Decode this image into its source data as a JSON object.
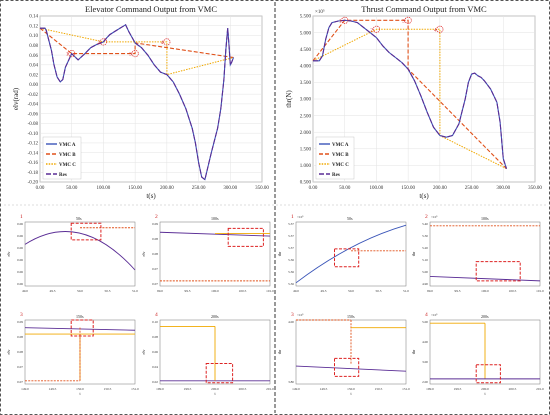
{
  "chart_data": [
    {
      "type": "line",
      "title": "Elevator Command Output from VMC",
      "xlabel": "t(s)",
      "ylabel": "elv(rad)",
      "xlim": [
        0,
        350
      ],
      "ylim": [
        -0.2,
        0.14
      ],
      "xticks": [
        "0.00",
        "50.00",
        "100.00",
        "150.00",
        "200.00",
        "250.00",
        "300.00",
        "350.00"
      ],
      "yticks": [
        "0.14",
        "0.12",
        "0.10",
        "0.08",
        "0.06",
        "0.04",
        "0.02",
        "0.00",
        "-0.02",
        "-0.04",
        "-0.06",
        "-0.08",
        "-0.10",
        "-0.12",
        "-0.14",
        "-0.16",
        "-0.18",
        "-0.20"
      ],
      "legend": [
        "VMC A",
        "VMC B",
        "VMC C",
        "Res"
      ],
      "legend_position": "bottom-left",
      "grid": true,
      "colors": {
        "VMC A": "#3a55b8",
        "VMC B": "#e0511a",
        "VMC C": "#f0a800",
        "Res": "#5a2d95"
      },
      "series": [
        {
          "name": "VMC A",
          "x": [
            0,
            8,
            10,
            18,
            22,
            27,
            32,
            36,
            40,
            50,
            60,
            70,
            80,
            90,
            100,
            105,
            110,
            120,
            130,
            135,
            140,
            150,
            160,
            170,
            180,
            190,
            200,
            210,
            220,
            230,
            240,
            245,
            250,
            255,
            260,
            270,
            280,
            285,
            290,
            293,
            296,
            298,
            300,
            302,
            305
          ],
          "y": [
            0.115,
            0.115,
            0.11,
            0.07,
            0.04,
            0.015,
            0.005,
            0.01,
            0.035,
            0.063,
            0.05,
            0.062,
            0.075,
            0.082,
            0.087,
            0.095,
            0.102,
            0.11,
            0.118,
            0.122,
            0.108,
            0.085,
            0.075,
            0.06,
            0.04,
            0.025,
            0.02,
            0.005,
            -0.02,
            -0.05,
            -0.09,
            -0.12,
            -0.16,
            -0.19,
            -0.195,
            -0.14,
            -0.09,
            -0.05,
            0.01,
            0.07,
            0.115,
            0.08,
            0.04,
            0.045,
            0.055
          ]
        },
        {
          "name": "VMC B",
          "x": [
            0,
            50,
            50,
            150,
            150,
            305
          ],
          "y": [
            0.115,
            0.063,
            0.063,
            0.063,
            0.085,
            0.055
          ]
        },
        {
          "name": "VMC C",
          "x": [
            0,
            100,
            100,
            200,
            200,
            305
          ],
          "y": [
            0.115,
            0.087,
            0.087,
            0.087,
            0.02,
            0.055
          ]
        },
        {
          "name": "Res",
          "x": [
            0,
            8,
            10,
            18,
            22,
            27,
            32,
            36,
            40,
            50,
            60,
            70,
            80,
            90,
            100,
            105,
            110,
            120,
            130,
            135,
            140,
            150,
            160,
            170,
            180,
            190,
            200,
            210,
            220,
            230,
            240,
            245,
            250,
            255,
            260,
            270,
            280,
            285,
            290,
            293,
            296,
            298,
            300,
            302,
            305
          ],
          "y": [
            0.115,
            0.115,
            0.11,
            0.07,
            0.04,
            0.015,
            0.005,
            0.01,
            0.035,
            0.063,
            0.05,
            0.062,
            0.075,
            0.082,
            0.087,
            0.095,
            0.102,
            0.11,
            0.118,
            0.122,
            0.108,
            0.085,
            0.075,
            0.06,
            0.04,
            0.025,
            0.02,
            0.005,
            -0.02,
            -0.05,
            -0.09,
            -0.12,
            -0.16,
            -0.19,
            -0.195,
            -0.14,
            -0.09,
            -0.05,
            0.01,
            0.07,
            0.115,
            0.08,
            0.04,
            0.045,
            0.055
          ]
        }
      ],
      "annotations": [
        "1",
        "2",
        "3",
        "4"
      ]
    },
    {
      "type": "line",
      "title": "Thrust Command Output from VMC",
      "xlabel": "t(s)",
      "ylabel": "thr(N)",
      "exponent_label": "×10⁵",
      "xlim": [
        0,
        350
      ],
      "ylim": [
        0.5,
        5.5
      ],
      "xticks": [
        "0.00",
        "50.00",
        "100.00",
        "150.00",
        "200.00",
        "250.00",
        "300.00",
        "350.00"
      ],
      "yticks": [
        "5.500",
        "5.000",
        "4.500",
        "4.000",
        "3.500",
        "3.000",
        "2.500",
        "2.000",
        "1.500",
        "1.000",
        "0.500"
      ],
      "legend": [
        "VMC A",
        "VMC B",
        "VMC C",
        "Res"
      ],
      "legend_position": "bottom-left",
      "grid": true,
      "series": [
        {
          "name": "VMC A",
          "x": [
            0,
            10,
            15,
            20,
            25,
            30,
            40,
            50,
            60,
            70,
            80,
            90,
            100,
            110,
            120,
            130,
            140,
            150,
            160,
            170,
            180,
            190,
            200,
            210,
            220,
            230,
            240,
            245,
            250,
            255,
            260,
            265,
            270,
            280,
            290,
            295,
            300,
            305
          ],
          "y": [
            4.15,
            4.15,
            4.3,
            4.8,
            5.15,
            5.3,
            5.35,
            5.37,
            5.35,
            5.3,
            5.15,
            5.0,
            4.85,
            4.6,
            4.4,
            4.25,
            4.1,
            3.9,
            3.55,
            3.1,
            2.6,
            2.15,
            1.9,
            1.85,
            1.9,
            2.25,
            3.0,
            3.5,
            3.75,
            3.78,
            3.7,
            3.65,
            3.55,
            3.3,
            2.9,
            2.3,
            1.2,
            0.9
          ]
        },
        {
          "name": "VMC B",
          "x": [
            0,
            50,
            50,
            150,
            150,
            305
          ],
          "y": [
            4.15,
            5.37,
            5.37,
            5.37,
            3.9,
            0.9
          ]
        },
        {
          "name": "VMC C",
          "x": [
            0,
            100,
            100,
            200,
            200,
            305
          ],
          "y": [
            4.15,
            5.1,
            5.1,
            5.1,
            1.9,
            0.9
          ]
        },
        {
          "name": "Res",
          "x": [
            0,
            10,
            15,
            20,
            25,
            30,
            40,
            50,
            60,
            70,
            80,
            90,
            100,
            110,
            120,
            130,
            140,
            150,
            160,
            170,
            180,
            190,
            200,
            210,
            220,
            230,
            240,
            245,
            250,
            255,
            260,
            265,
            270,
            280,
            290,
            295,
            300,
            305
          ],
          "y": [
            4.15,
            4.15,
            4.3,
            4.8,
            5.15,
            5.3,
            5.35,
            5.37,
            5.35,
            5.3,
            5.15,
            5.0,
            4.85,
            4.6,
            4.4,
            4.25,
            4.1,
            3.9,
            3.55,
            3.1,
            2.6,
            2.15,
            1.9,
            1.85,
            1.9,
            2.25,
            3.0,
            3.5,
            3.75,
            3.78,
            3.7,
            3.65,
            3.55,
            3.3,
            2.9,
            2.3,
            1.2,
            0.9
          ]
        }
      ],
      "annotations": [
        "1",
        "2",
        "3",
        "4"
      ]
    },
    {
      "type": "line",
      "panel": "elevator-zoom-1",
      "number": "1",
      "title": "50s",
      "ylabel": "elv",
      "xticks": [
        "49.0",
        "49.5",
        "50.0",
        "50.5",
        "51.0"
      ],
      "yticks": [
        "0.06",
        "0.06",
        "0.06",
        "0.06",
        "0.06",
        "0.06"
      ]
    },
    {
      "type": "line",
      "panel": "elevator-zoom-2",
      "number": "2",
      "title": "100s",
      "ylabel": "elv",
      "xticks": [
        "99.0",
        "99.5",
        "100.0",
        "100.5",
        "101.0"
      ],
      "yticks": [
        "0.09",
        "0.08",
        "0.08",
        "0.07",
        "0.07"
      ]
    },
    {
      "type": "line",
      "panel": "elevator-zoom-3",
      "number": "3",
      "title": "150s",
      "ylabel": "elv",
      "xlabel": "t",
      "xticks": [
        "149.0",
        "149.5",
        "150.0",
        "150.5",
        "151.0"
      ],
      "yticks": [
        "0.09",
        "0.08",
        "0.08",
        "0.07",
        "0.07"
      ]
    },
    {
      "type": "line",
      "panel": "elevator-zoom-4",
      "number": "4",
      "title": "200s",
      "ylabel": "elv",
      "xlabel": "t",
      "xticks": [
        "199.0",
        "199.5",
        "200.0",
        "200.5",
        "201.0"
      ],
      "yticks": [
        "0.10",
        "0.08",
        "0.06",
        "0.04",
        "0.02"
      ]
    },
    {
      "type": "line",
      "panel": "thrust-zoom-1",
      "number": "1",
      "title": "50s",
      "ylabel": "thr",
      "exponent_label": "×10⁵",
      "xticks": [
        "49.0",
        "49.5",
        "50.0",
        "50.5",
        "51.0"
      ],
      "yticks": [
        "5.37",
        "5.37",
        "5.37",
        "5.36",
        "5.36",
        "5.36"
      ]
    },
    {
      "type": "line",
      "panel": "thrust-zoom-2",
      "number": "2",
      "title": "100s",
      "ylabel": "thr",
      "exponent_label": "×10⁵",
      "xticks": [
        "99.0",
        "99.5",
        "100.0",
        "100.5",
        "101.0"
      ],
      "yticks": [
        "5.40",
        "5.30",
        "5.20",
        "5.10",
        "5.00",
        "4.90"
      ]
    },
    {
      "type": "line",
      "panel": "thrust-zoom-3",
      "number": "3",
      "title": "150s",
      "ylabel": "thr",
      "xlabel": "t",
      "exponent_label": "×10⁵",
      "xticks": [
        "149.0",
        "149.5",
        "150.0",
        "150.5",
        "151.0"
      ],
      "yticks": [
        "4.00",
        "3.80"
      ]
    },
    {
      "type": "line",
      "panel": "thrust-zoom-4",
      "number": "4",
      "title": "200s",
      "ylabel": "thr",
      "xlabel": "t",
      "exponent_label": "×10⁵",
      "xticks": [
        "199.0",
        "199.5",
        "200.0",
        "200.5",
        "201.0"
      ],
      "yticks": [
        "5.00",
        "4.00",
        "3.00",
        "2.00"
      ]
    }
  ]
}
